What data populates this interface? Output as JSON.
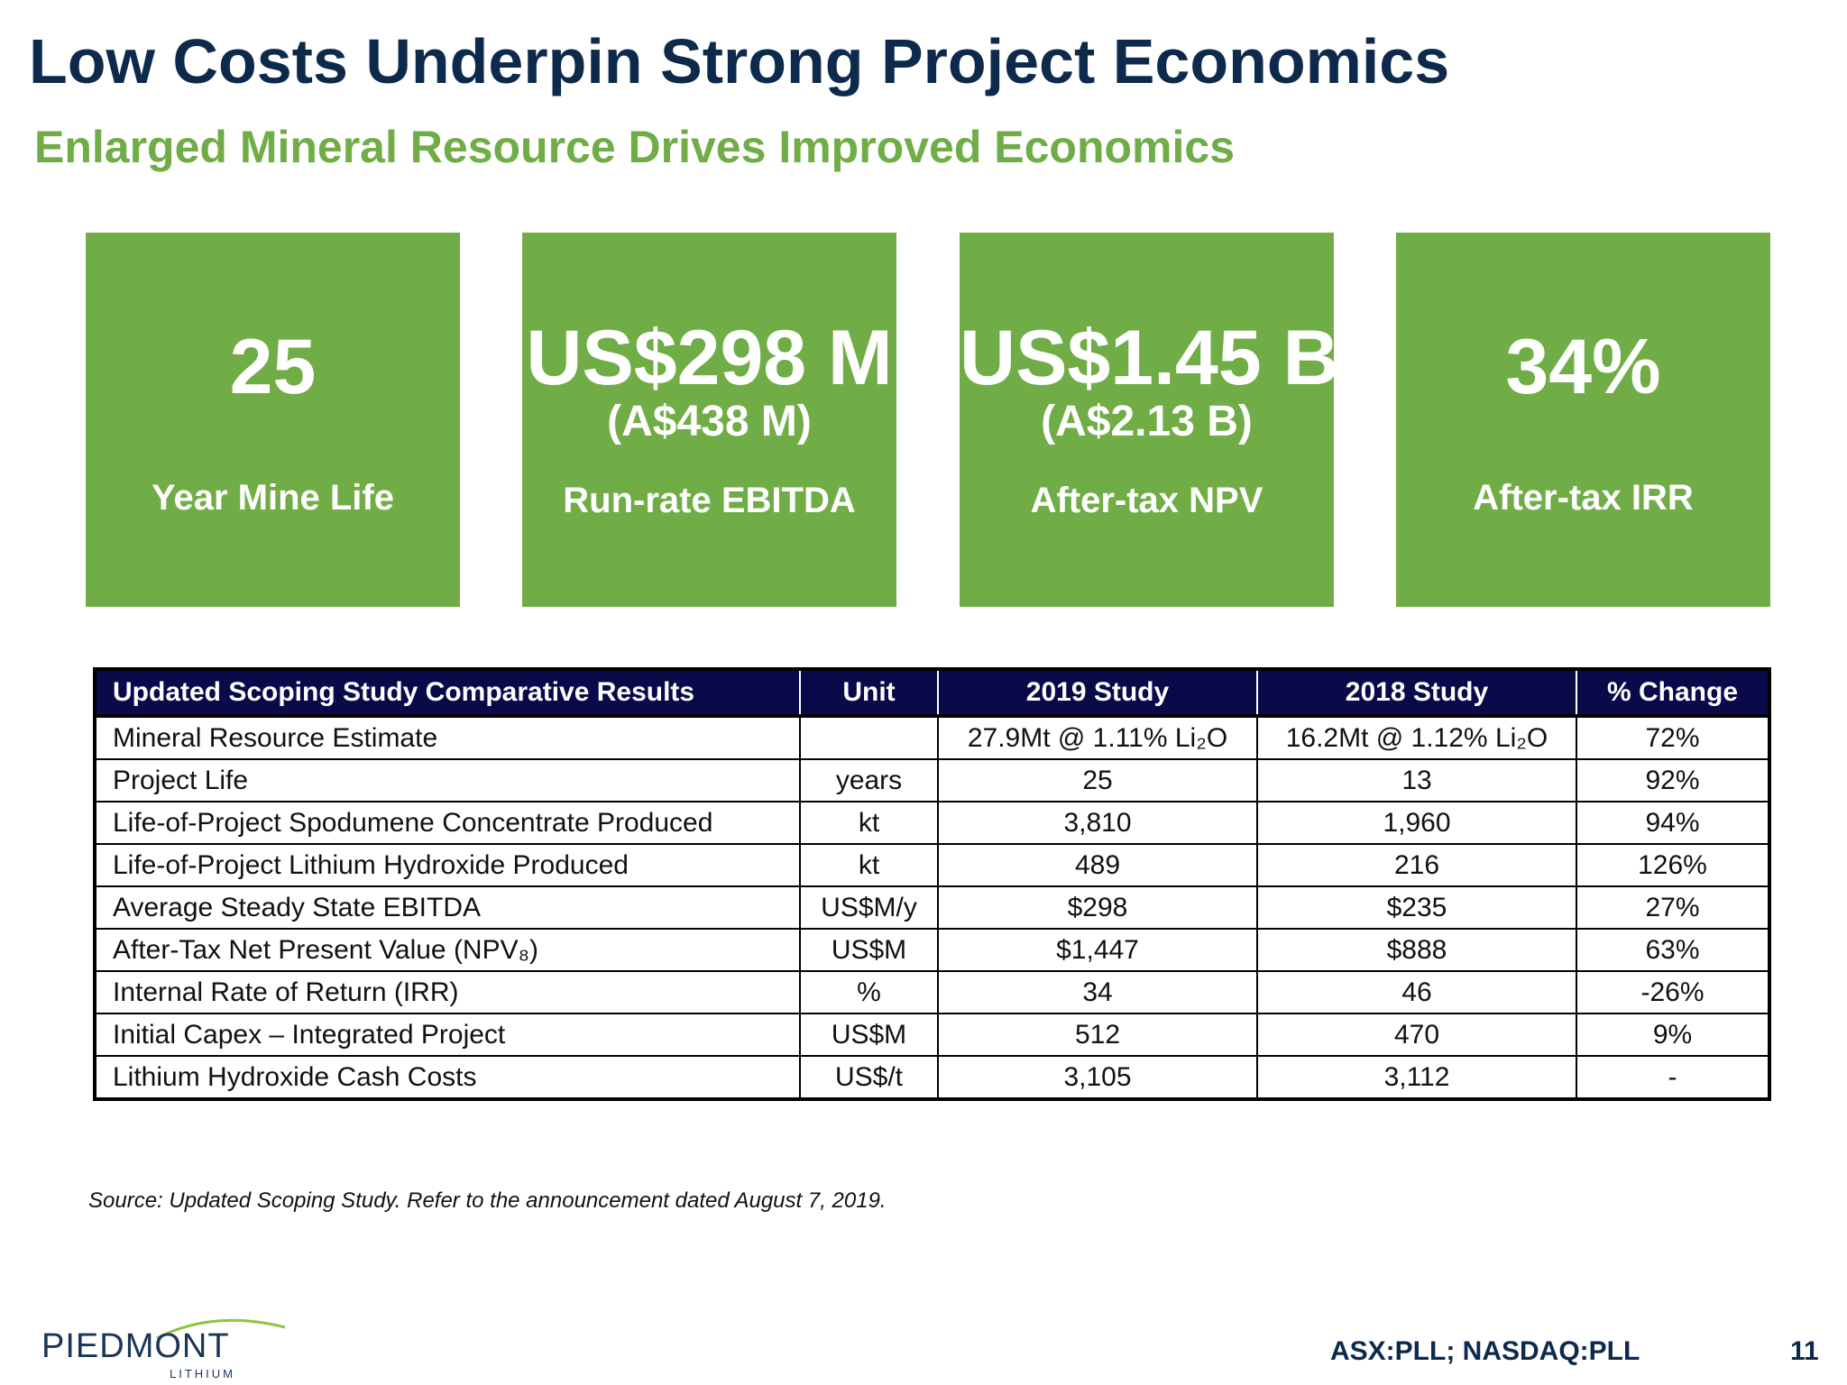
{
  "header": {
    "title": "Low Costs Underpin Strong Project Economics",
    "subtitle": "Enlarged Mineral Resource Drives Improved Economics"
  },
  "colors": {
    "title": "#0d2a4c",
    "accent_green": "#70ad47",
    "table_header": "#0a0a4a"
  },
  "cards": [
    {
      "value": "25",
      "sub": "",
      "label": "Year Mine Life"
    },
    {
      "value": "US$298 M",
      "sub": "(A$438 M)",
      "label": "Run-rate EBITDA"
    },
    {
      "value": "US$1.45 B",
      "sub": "(A$2.13 B)",
      "label": "After-tax NPV"
    },
    {
      "value": "34%",
      "sub": "",
      "label": "After-tax IRR"
    }
  ],
  "table": {
    "headers": [
      "Updated Scoping Study Comparative Results",
      "Unit",
      "2019 Study",
      "2018 Study",
      "% Change"
    ],
    "rows": [
      {
        "metric": "Mineral Resource Estimate",
        "unit": "",
        "y2019": "27.9Mt @ 1.11% Li₂O",
        "y2018": "16.2Mt @ 1.12% Li₂O",
        "change": "72%"
      },
      {
        "metric": "Project Life",
        "unit": "years",
        "y2019": "25",
        "y2018": "13",
        "change": "92%"
      },
      {
        "metric": "Life-of-Project Spodumene Concentrate Produced",
        "unit": "kt",
        "y2019": "3,810",
        "y2018": "1,960",
        "change": "94%"
      },
      {
        "metric": "Life-of-Project Lithium Hydroxide Produced",
        "unit": "kt",
        "y2019": "489",
        "y2018": "216",
        "change": "126%"
      },
      {
        "metric": "Average Steady State EBITDA",
        "unit": "US$M/y",
        "y2019": "$298",
        "y2018": "$235",
        "change": "27%"
      },
      {
        "metric": "After-Tax Net Present Value (NPV₈)",
        "unit": "US$M",
        "y2019": "$1,447",
        "y2018": "$888",
        "change": "63%"
      },
      {
        "metric": "Internal Rate of Return (IRR)",
        "unit": "%",
        "y2019": "34",
        "y2018": "46",
        "change": "-26%"
      },
      {
        "metric": "Initial Capex – Integrated Project",
        "unit": "US$M",
        "y2019": "512",
        "y2018": "470",
        "change": "9%"
      },
      {
        "metric": "Lithium Hydroxide Cash Costs",
        "unit": "US$/t",
        "y2019": "3,105",
        "y2018": "3,112",
        "change": "-"
      }
    ]
  },
  "footer": {
    "source": "Source: Updated Scoping Study.  Refer  to the announcement dated August 7, 2019.",
    "logo_name": "PIEDMONT",
    "logo_tagline": "LITHIUM",
    "ticker": "ASX:PLL; NASDAQ:PLL",
    "page_number": "11"
  }
}
